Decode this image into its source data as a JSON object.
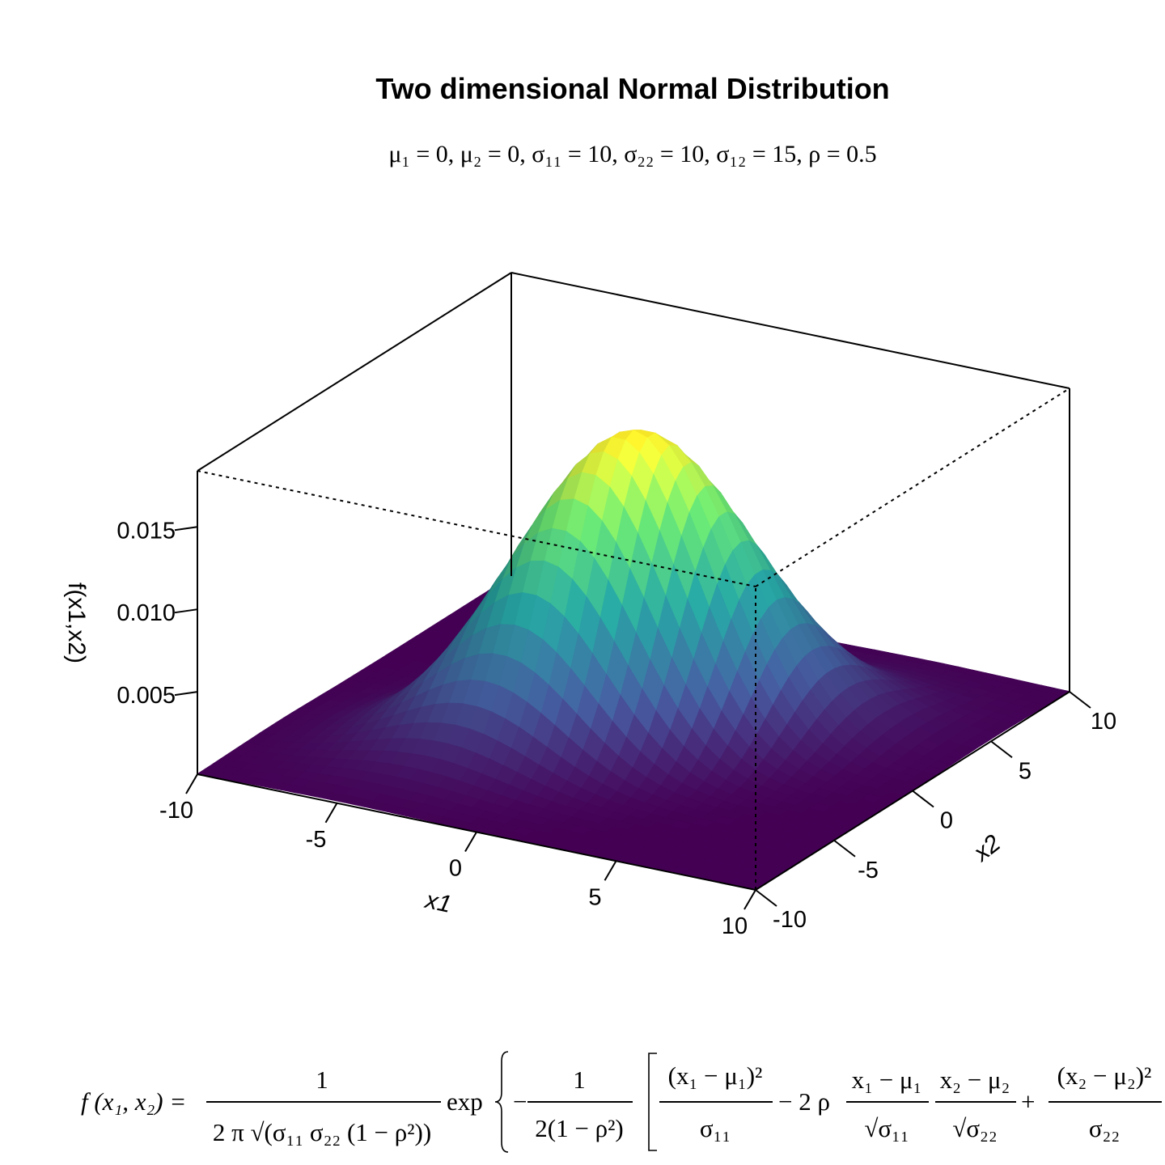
{
  "chart_data": {
    "type": "surface3d",
    "title": "Two dimensional Normal Distribution",
    "subtitle": "μ₁ = 0, μ₂ = 0, σ₁₁ = 10, σ₂₂ = 10, σ₁₂ = 15, ρ = 0.5",
    "parameters": {
      "mu1": 0,
      "mu2": 0,
      "sigma11": 10,
      "sigma22": 10,
      "sigma12": 15,
      "rho": 0.5
    },
    "xlabel": "x1",
    "ylabel": "x2",
    "zlabel": "f(x1,x2)",
    "xlim": [
      -10,
      10
    ],
    "ylim": [
      -10,
      10
    ],
    "zlim": [
      0,
      0.0184
    ],
    "x_ticks": [
      -10,
      -5,
      0,
      5,
      10
    ],
    "y_ticks": [
      -10,
      -5,
      0,
      5,
      10
    ],
    "z_ticks": [
      0.005,
      0.01,
      0.015
    ],
    "x_tick_labels": [
      "-10",
      "-5",
      "0",
      "5",
      "10"
    ],
    "y_tick_labels": [
      "-10",
      "-5",
      "0",
      "5",
      "10"
    ],
    "z_tick_labels": [
      "0.005",
      "0.010",
      "0.015"
    ],
    "peak_value": 0.0184,
    "colormap": [
      "#440154",
      "#3b528b",
      "#21908d",
      "#5dc963",
      "#fde725"
    ]
  },
  "formula": {
    "lhs": "f (x₁, x₂) =",
    "frac1_num": "1",
    "frac1_den": "2 π √(σ₁₁ σ₂₂ (1 − ρ²))",
    "exp": "exp",
    "frac2_num": "1",
    "frac2_den": "2(1 − ρ²)",
    "t1_num": "(x₁ − μ₁)²",
    "t1_den": "σ₁₁",
    "minus_2rho": "− 2 ρ",
    "t2_num": "x₁ − μ₁",
    "t2_den": "√σ₁₁",
    "t3_num": "x₂ − μ₂",
    "t3_den": "√σ₂₂",
    "plus": "+",
    "t4_num": "(x₂ − μ₂)²",
    "t4_den": "σ₂₂"
  }
}
